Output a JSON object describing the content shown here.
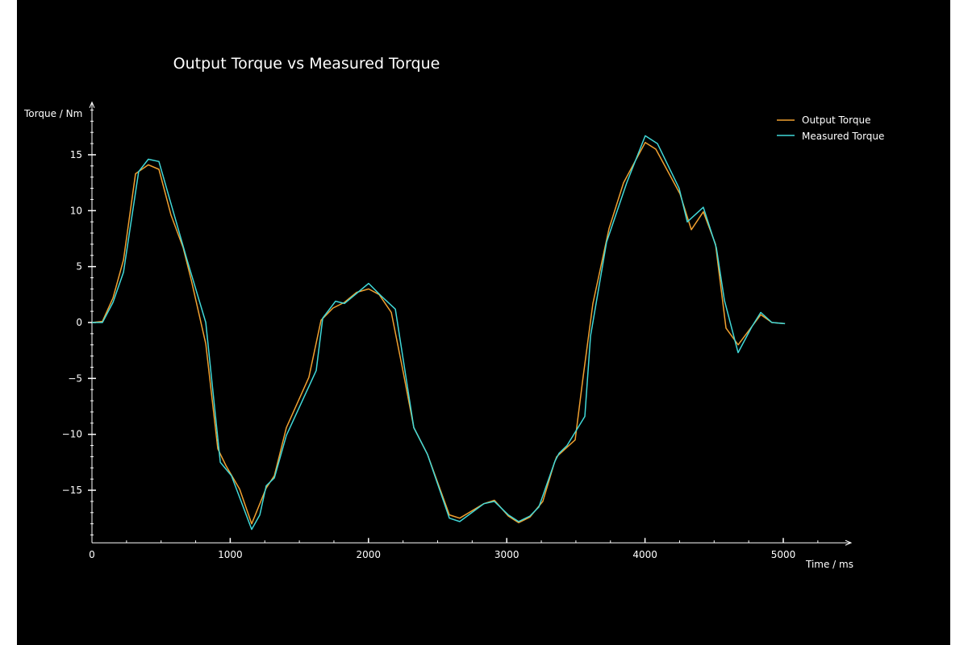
{
  "chart_data": {
    "type": "line",
    "title": "Output Torque vs Measured Torque",
    "xlabel": "Time / ms",
    "ylabel": "Torque / Nm",
    "xlim": [
      0,
      5490
    ],
    "ylim": [
      -19.7,
      19.7
    ],
    "x_ticks": [
      0,
      1000,
      2000,
      3000,
      4000,
      5000
    ],
    "y_ticks": [
      -15,
      -10,
      -5,
      0,
      5,
      10,
      15
    ],
    "grid": false,
    "legend": "top-right",
    "background": "#000000",
    "series": [
      {
        "name": "Output Torque",
        "color": "#f0a030",
        "x": [
          0,
          76,
          152,
          228,
          315,
          408,
          484,
          572,
          659,
          718,
          823,
          910,
          969,
          1068,
          1155,
          1260,
          1319,
          1406,
          1569,
          1657,
          1744,
          1826,
          1914,
          2001,
          2077,
          2165,
          2252,
          2328,
          2427,
          2585,
          2660,
          2835,
          2911,
          3011,
          3086,
          3168,
          3261,
          3343,
          3361,
          3495,
          3553,
          3623,
          3740,
          3845,
          4002,
          4078,
          4253,
          4335,
          4422,
          4510,
          4586,
          4673,
          4837,
          4918,
          5012
        ],
        "y": [
          0,
          0.1,
          2.2,
          5.6,
          13.3,
          14.1,
          13.7,
          9.6,
          6.7,
          3.8,
          -1.9,
          -11.3,
          -12.8,
          -14.9,
          -18.0,
          -14.8,
          -13.7,
          -9.4,
          -4.9,
          0.2,
          1.3,
          1.8,
          2.7,
          3.0,
          2.5,
          0.9,
          -4.5,
          -9.4,
          -11.8,
          -17.2,
          -17.5,
          -16.2,
          -15.9,
          -17.3,
          -17.9,
          -17.4,
          -16.0,
          -12.6,
          -12.0,
          -10.5,
          -4.8,
          1.7,
          8.4,
          12.5,
          16.1,
          15.5,
          11.5,
          8.3,
          9.9,
          7.0,
          -0.5,
          -2.0,
          0.7,
          0,
          -0.1
        ]
      },
      {
        "name": "Measured Torque",
        "color": "#40d8d8",
        "x": [
          0,
          76,
          152,
          228,
          338,
          408,
          484,
          688,
          823,
          928,
          1009,
          1155,
          1214,
          1260,
          1319,
          1406,
          1622,
          1669,
          1762,
          1826,
          2001,
          2089,
          2194,
          2328,
          2427,
          2585,
          2660,
          2835,
          2911,
          3011,
          3086,
          3168,
          3232,
          3349,
          3378,
          3436,
          3565,
          3606,
          3722,
          3868,
          4002,
          4090,
          4247,
          4306,
          4422,
          4516,
          4574,
          4673,
          4772,
          4837,
          4918,
          5012
        ],
        "y": [
          0,
          0,
          1.8,
          4.5,
          13.5,
          14.6,
          14.4,
          5.6,
          0,
          -12.5,
          -13.7,
          -18.5,
          -17.2,
          -14.6,
          -13.9,
          -10.1,
          -4.3,
          0.4,
          1.9,
          1.7,
          3.5,
          2.4,
          1.2,
          -9.4,
          -11.8,
          -17.5,
          -17.8,
          -16.2,
          -16.0,
          -17.2,
          -17.8,
          -17.3,
          -16.5,
          -12.4,
          -11.7,
          -11.0,
          -8.4,
          -1.2,
          7.2,
          12.5,
          16.7,
          16.0,
          12.0,
          9.0,
          10.3,
          6.7,
          2.0,
          -2.7,
          -0.4,
          0.9,
          0,
          -0.1
        ]
      }
    ]
  }
}
